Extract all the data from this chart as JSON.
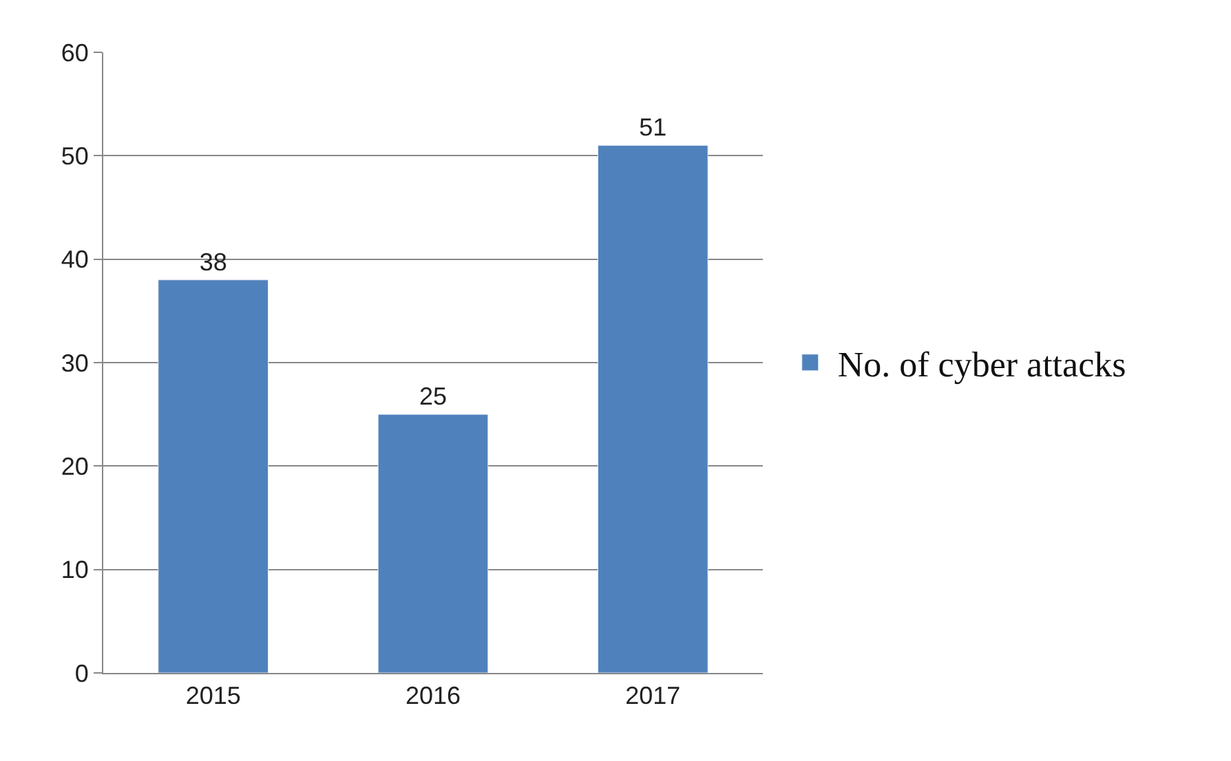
{
  "chart_data": {
    "type": "bar",
    "categories": [
      "2015",
      "2016",
      "2017"
    ],
    "series": [
      {
        "name": "No. of cyber attacks",
        "color": "#4f81bd",
        "values": [
          38,
          25,
          51
        ]
      }
    ],
    "ylim": [
      0,
      60
    ],
    "yticks": [
      0,
      10,
      20,
      30,
      40,
      50,
      60
    ],
    "grid": "y",
    "legend": "right",
    "data_labels": true
  }
}
